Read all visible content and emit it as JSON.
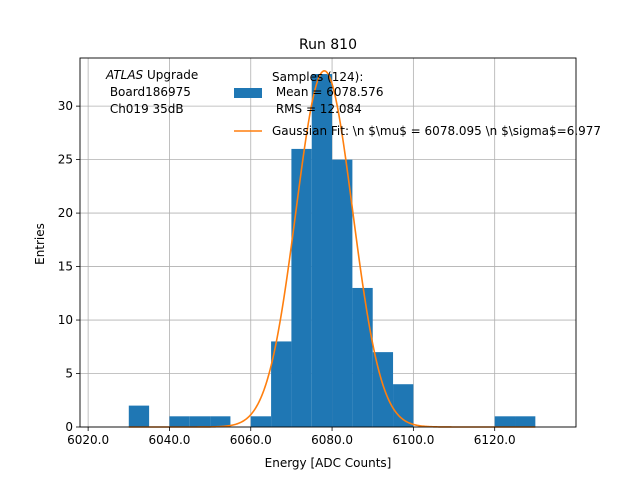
{
  "chart_data": {
    "type": "bar",
    "title": "Run 810",
    "xlabel": "Energy [ADC Counts]",
    "ylabel": "Entries",
    "xlim": [
      6018,
      6140
    ],
    "ylim": [
      0,
      34.5
    ],
    "xticks": [
      6020.0,
      6040.0,
      6060.0,
      6080.0,
      6100.0,
      6120.0
    ],
    "xtick_labels": [
      "6020.0",
      "6040.0",
      "6060.0",
      "6080.0",
      "6100.0",
      "6120.0"
    ],
    "yticks": [
      0,
      5,
      10,
      15,
      20,
      25,
      30
    ],
    "ytick_labels": [
      "0",
      "5",
      "10",
      "15",
      "20",
      "25",
      "30"
    ],
    "grid": true,
    "bin_width": 5,
    "bins": [
      {
        "x0": 6030,
        "count": 2
      },
      {
        "x0": 6035,
        "count": 0
      },
      {
        "x0": 6040,
        "count": 1
      },
      {
        "x0": 6045,
        "count": 1
      },
      {
        "x0": 6050,
        "count": 1
      },
      {
        "x0": 6055,
        "count": 0
      },
      {
        "x0": 6060,
        "count": 1
      },
      {
        "x0": 6065,
        "count": 8
      },
      {
        "x0": 6070,
        "count": 26
      },
      {
        "x0": 6075,
        "count": 33
      },
      {
        "x0": 6080,
        "count": 25
      },
      {
        "x0": 6085,
        "count": 13
      },
      {
        "x0": 6090,
        "count": 7
      },
      {
        "x0": 6095,
        "count": 4
      },
      {
        "x0": 6100,
        "count": 0
      },
      {
        "x0": 6105,
        "count": 0
      },
      {
        "x0": 6110,
        "count": 0
      },
      {
        "x0": 6115,
        "count": 0
      },
      {
        "x0": 6120,
        "count": 1
      },
      {
        "x0": 6125,
        "count": 1
      }
    ],
    "gaussian": {
      "mu": 6078.095,
      "sigma": 6.977,
      "amplitude": 33.3,
      "x_range": [
        6030,
        6130
      ]
    },
    "colors": {
      "histogram": "#1f77b4",
      "fit": "#ff7f0e",
      "grid": "#b0b0b0"
    },
    "legend": {
      "placement": "top",
      "histogram_label_lines": [
        "Samples (124):",
        " Mean = 6078.576",
        " RMS = 12.084"
      ],
      "fit_label": "Gaussian Fit: \\n $\\mu$ = 6078.095 \\n $\\sigma$=6.977"
    },
    "annotation": {
      "italic": "ATLAS",
      "rest": " Upgrade",
      "line2": " Board186975",
      "line3": " Ch019 35dB"
    }
  }
}
